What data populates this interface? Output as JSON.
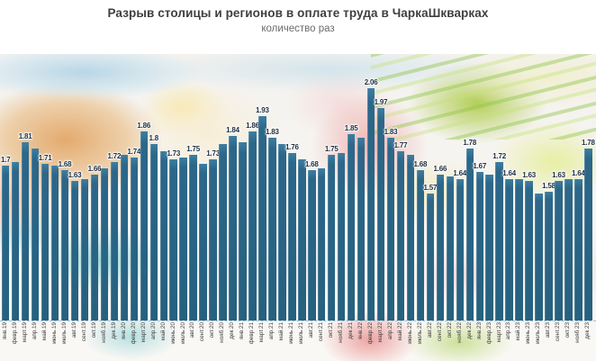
{
  "header": {
    "title": "Разрыв столицы и регионов в оплате труда в ЧаркаШкварках",
    "subtitle": "количество раз"
  },
  "chart_data": {
    "type": "bar",
    "title": "Разрыв столицы и регионов в оплате труда в ЧаркаШкварках",
    "subtitle": "количество раз",
    "xlabel": "",
    "ylabel": "",
    "ylim": [
      0.98,
      2.12
    ],
    "grid": false,
    "legend": "none",
    "baseline_dashed": true,
    "bar_color": "#2c678a",
    "value_label_color": "#1d2d3d",
    "axis_label_color": "#3d3d3d",
    "baseline_dash_color": "#9fc2da",
    "background": "food-photo collage (bread, plate, tomatoes, greens) washed out behind bars",
    "categories": [
      "янв.19",
      "февр.19",
      "март.19",
      "апр.19",
      "май.19",
      "июнь.19",
      "июль.19",
      "авг.19",
      "сент.19",
      "окт.19",
      "нояб.19",
      "дек.19",
      "янв.20",
      "февр.20",
      "март.20",
      "апр.20",
      "май.20",
      "июнь.20",
      "июль.20",
      "авг.20",
      "сент.20",
      "окт.20",
      "нояб.20",
      "дек.20",
      "янв.21",
      "февр.21",
      "март.21",
      "апр.21",
      "май.21",
      "июнь.21",
      "июль.21",
      "авг.21",
      "сент.21",
      "окт.21",
      "нояб.21",
      "дек.21",
      "янв.22",
      "февр.22",
      "март.22",
      "апр.22",
      "май.22",
      "июнь.22",
      "июль.22",
      "авг.22",
      "сент.22",
      "окт.22",
      "нояб.22",
      "дек.22",
      "янв.23",
      "февр.23",
      "март.23",
      "апр.23",
      "май.23",
      "июнь.23",
      "июль.23",
      "авг.23",
      "сент.23",
      "окт.23",
      "нояб.23",
      "дек.23"
    ],
    "values": [
      1.7,
      1.72,
      1.81,
      1.78,
      1.71,
      1.7,
      1.68,
      1.63,
      1.64,
      1.66,
      1.69,
      1.72,
      1.75,
      1.74,
      1.86,
      1.8,
      1.77,
      1.73,
      1.74,
      1.75,
      1.71,
      1.73,
      1.8,
      1.84,
      1.81,
      1.86,
      1.93,
      1.83,
      1.8,
      1.76,
      1.73,
      1.68,
      1.69,
      1.75,
      1.76,
      1.85,
      1.83,
      2.06,
      1.97,
      1.83,
      1.77,
      1.75,
      1.68,
      1.57,
      1.66,
      1.65,
      1.64,
      1.78,
      1.67,
      1.66,
      1.72,
      1.64,
      1.64,
      1.63,
      1.57,
      1.58,
      1.63,
      1.64,
      1.64,
      1.78
    ],
    "bar_labels": [
      "1.7",
      "",
      "1.81",
      "",
      "1.71",
      "",
      "1.68",
      "1.63",
      "",
      "1.66",
      "",
      "1.72",
      "",
      "1.74",
      "1.86",
      "1.8",
      "",
      "1.73",
      "",
      "1.75",
      "",
      "1.73",
      "",
      "1.84",
      "",
      "1.86",
      "1.93",
      "1.83",
      "",
      "1.76",
      "",
      "1.68",
      "",
      "1.75",
      "",
      "1.85",
      "",
      "2.06",
      "1.97",
      "1.83",
      "1.77",
      "",
      "1.68",
      "1.57",
      "1.66",
      "",
      "1.64",
      "1.78",
      "1.67",
      "",
      "1.72",
      "1.64",
      "",
      "1.63",
      "",
      "1.58",
      "1.63",
      "",
      "1.64",
      "1.78"
    ]
  }
}
